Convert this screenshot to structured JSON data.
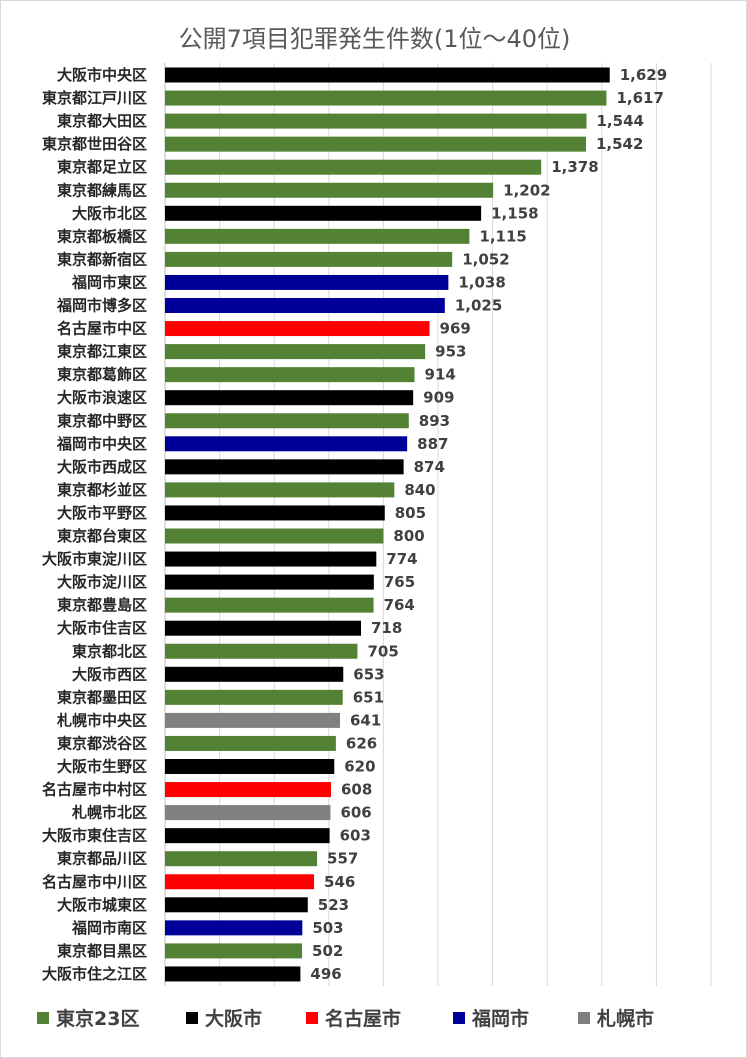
{
  "chart_data": {
    "type": "bar",
    "orientation": "horizontal",
    "title": "公開7項目犯罪発生件数(1位～40位)",
    "xlim": [
      0,
      2000
    ],
    "grid": true,
    "legend_position": "bottom",
    "groups": [
      {
        "name": "東京23区",
        "color": "#548235"
      },
      {
        "name": "大阪市",
        "color": "#000000"
      },
      {
        "name": "名古屋市",
        "color": "#ff0000"
      },
      {
        "name": "福岡市",
        "color": "#000099"
      },
      {
        "name": "札幌市",
        "color": "#808080"
      }
    ],
    "bars": [
      {
        "label": "大阪市中央区",
        "value": 1629,
        "value_label": "1,629",
        "group": 1
      },
      {
        "label": "東京都江戸川区",
        "value": 1617,
        "value_label": "1,617",
        "group": 0
      },
      {
        "label": "東京都大田区",
        "value": 1544,
        "value_label": "1,544",
        "group": 0
      },
      {
        "label": "東京都世田谷区",
        "value": 1542,
        "value_label": "1,542",
        "group": 0
      },
      {
        "label": "東京都足立区",
        "value": 1378,
        "value_label": "1,378",
        "group": 0
      },
      {
        "label": "東京都練馬区",
        "value": 1202,
        "value_label": "1,202",
        "group": 0
      },
      {
        "label": "大阪市北区",
        "value": 1158,
        "value_label": "1,158",
        "group": 1
      },
      {
        "label": "東京都板橋区",
        "value": 1115,
        "value_label": "1,115",
        "group": 0
      },
      {
        "label": "東京都新宿区",
        "value": 1052,
        "value_label": "1,052",
        "group": 0
      },
      {
        "label": "福岡市東区",
        "value": 1038,
        "value_label": "1,038",
        "group": 3
      },
      {
        "label": "福岡市博多区",
        "value": 1025,
        "value_label": "1,025",
        "group": 3
      },
      {
        "label": "名古屋市中区",
        "value": 969,
        "value_label": "969",
        "group": 2
      },
      {
        "label": "東京都江東区",
        "value": 953,
        "value_label": "953",
        "group": 0
      },
      {
        "label": "東京都葛飾区",
        "value": 914,
        "value_label": "914",
        "group": 0
      },
      {
        "label": "大阪市浪速区",
        "value": 909,
        "value_label": "909",
        "group": 1
      },
      {
        "label": "東京都中野区",
        "value": 893,
        "value_label": "893",
        "group": 0
      },
      {
        "label": "福岡市中央区",
        "value": 887,
        "value_label": "887",
        "group": 3
      },
      {
        "label": "大阪市西成区",
        "value": 874,
        "value_label": "874",
        "group": 1
      },
      {
        "label": "東京都杉並区",
        "value": 840,
        "value_label": "840",
        "group": 0
      },
      {
        "label": "大阪市平野区",
        "value": 805,
        "value_label": "805",
        "group": 1
      },
      {
        "label": "東京都台東区",
        "value": 800,
        "value_label": "800",
        "group": 0
      },
      {
        "label": "大阪市東淀川区",
        "value": 774,
        "value_label": "774",
        "group": 1
      },
      {
        "label": "大阪市淀川区",
        "value": 765,
        "value_label": "765",
        "group": 1
      },
      {
        "label": "東京都豊島区",
        "value": 764,
        "value_label": "764",
        "group": 0
      },
      {
        "label": "大阪市住吉区",
        "value": 718,
        "value_label": "718",
        "group": 1
      },
      {
        "label": "東京都北区",
        "value": 705,
        "value_label": "705",
        "group": 0
      },
      {
        "label": "大阪市西区",
        "value": 653,
        "value_label": "653",
        "group": 1
      },
      {
        "label": "東京都墨田区",
        "value": 651,
        "value_label": "651",
        "group": 0
      },
      {
        "label": "札幌市中央区",
        "value": 641,
        "value_label": "641",
        "group": 4
      },
      {
        "label": "東京都渋谷区",
        "value": 626,
        "value_label": "626",
        "group": 0
      },
      {
        "label": "大阪市生野区",
        "value": 620,
        "value_label": "620",
        "group": 1
      },
      {
        "label": "名古屋市中村区",
        "value": 608,
        "value_label": "608",
        "group": 2
      },
      {
        "label": "札幌市北区",
        "value": 606,
        "value_label": "606",
        "group": 4
      },
      {
        "label": "大阪市東住吉区",
        "value": 603,
        "value_label": "603",
        "group": 1
      },
      {
        "label": "東京都品川区",
        "value": 557,
        "value_label": "557",
        "group": 0
      },
      {
        "label": "名古屋市中川区",
        "value": 546,
        "value_label": "546",
        "group": 2
      },
      {
        "label": "大阪市城東区",
        "value": 523,
        "value_label": "523",
        "group": 1
      },
      {
        "label": "福岡市南区",
        "value": 503,
        "value_label": "503",
        "group": 3
      },
      {
        "label": "東京都目黒区",
        "value": 502,
        "value_label": "502",
        "group": 0
      },
      {
        "label": "大阪市住之江区",
        "value": 496,
        "value_label": "496",
        "group": 1
      }
    ]
  }
}
